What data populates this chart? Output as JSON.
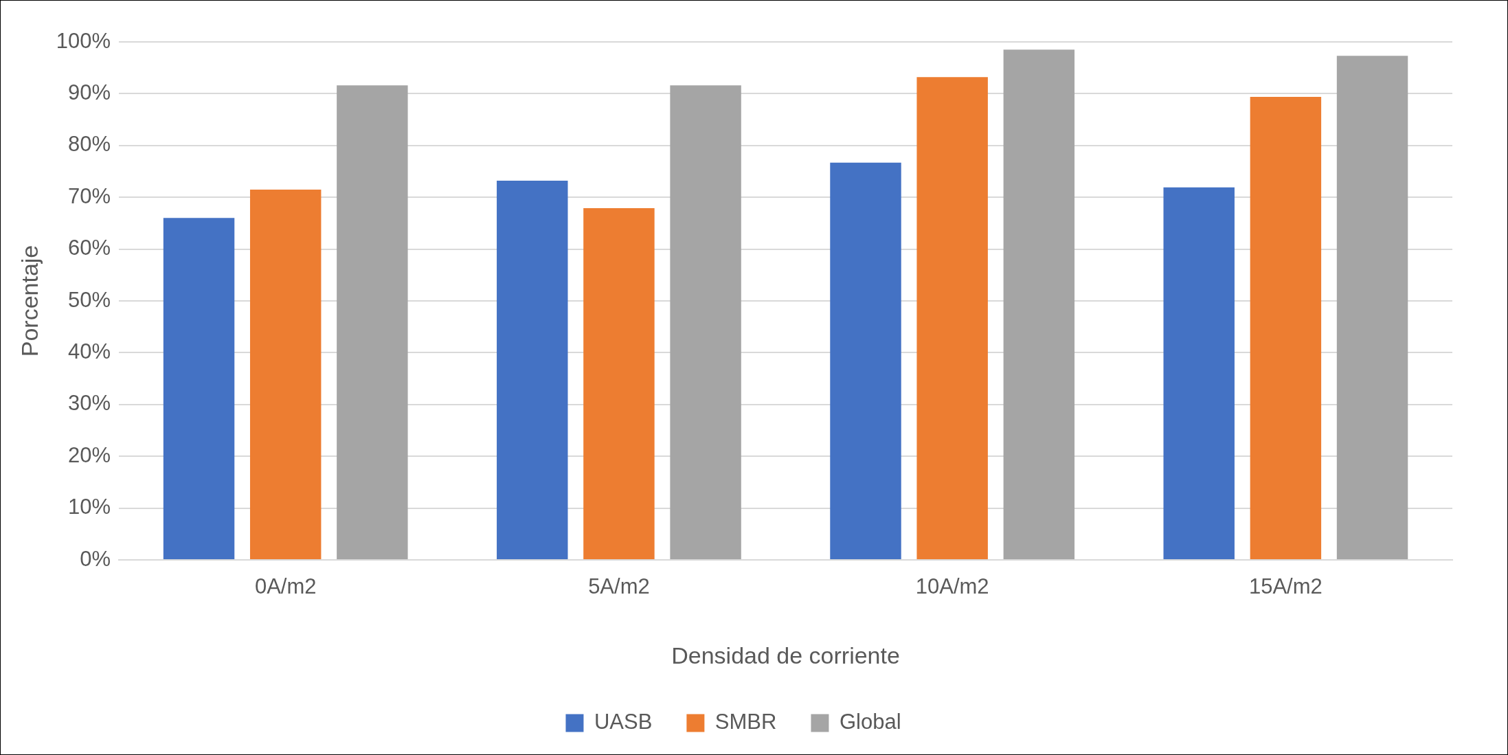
{
  "chart_data": {
    "type": "bar",
    "xlabel": "Densidad de corriente",
    "ylabel": "Porcentaje",
    "categories": [
      "0A/m2",
      "5A/m2",
      "10A/m2",
      "15A/m2"
    ],
    "series": [
      {
        "name": "UASB",
        "color": "#4472c4",
        "values": [
          66,
          73.2,
          76.7,
          71.9
        ]
      },
      {
        "name": "SMBR",
        "color": "#ed7d31",
        "values": [
          71.5,
          67.9,
          93.2,
          89.4
        ]
      },
      {
        "name": "Global",
        "color": "#a5a5a5",
        "values": [
          91.6,
          91.6,
          98.5,
          97.3
        ]
      }
    ],
    "ylim": [
      0,
      100
    ],
    "yticks": [
      {
        "value": 0,
        "label": "0%"
      },
      {
        "value": 10,
        "label": "10%"
      },
      {
        "value": 20,
        "label": "20%"
      },
      {
        "value": 30,
        "label": "30%"
      },
      {
        "value": 40,
        "label": "40%"
      },
      {
        "value": 50,
        "label": "50%"
      },
      {
        "value": 60,
        "label": "60%"
      },
      {
        "value": 70,
        "label": "70%"
      },
      {
        "value": 80,
        "label": "80%"
      },
      {
        "value": 90,
        "label": "90%"
      },
      {
        "value": 100,
        "label": "100%"
      }
    ],
    "grid": "y",
    "legend": "bottom"
  }
}
